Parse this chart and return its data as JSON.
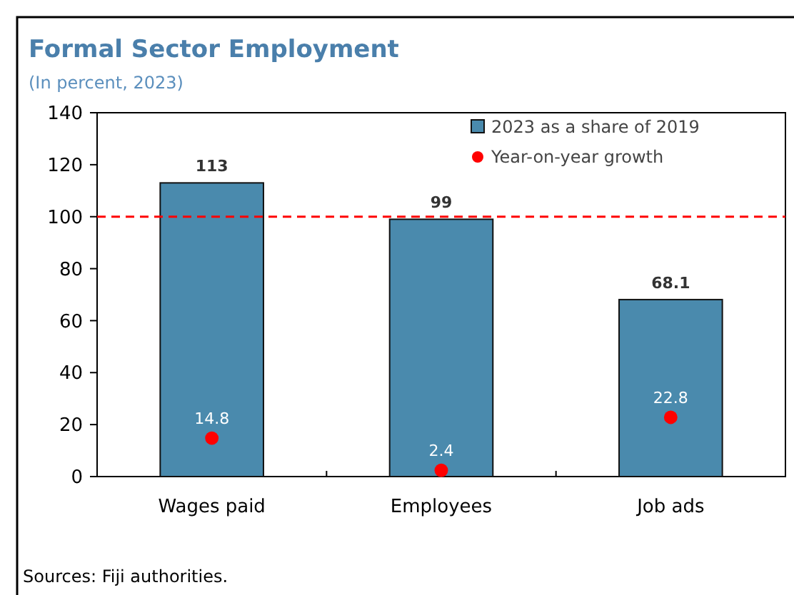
{
  "chart_data": {
    "type": "bar",
    "title": "Formal Sector Employment",
    "subtitle": "(In percent, 2023)",
    "categories": [
      "Wages paid",
      "Employees",
      "Job ads"
    ],
    "series": [
      {
        "name": "2023 as a share of 2019",
        "color": "#4a8aad",
        "values": [
          113,
          99,
          68.1
        ]
      },
      {
        "name": "Year-on-year growth",
        "type": "scatter",
        "color": "#ff0000",
        "x": [
          "Wages paid",
          "Employees",
          "Job ads"
        ],
        "values": [
          14.8,
          2.4,
          22.8
        ]
      }
    ],
    "ylim": [
      0,
      140
    ],
    "yticks": [
      0,
      20,
      40,
      60,
      80,
      100,
      120,
      140
    ],
    "grid": false,
    "legend": "top right",
    "data_labels": true,
    "marker": "circle",
    "ref_lines": [
      {
        "axis": "y",
        "value": 100,
        "label": null,
        "color": "#ff0000",
        "line_style": "dashed"
      }
    ],
    "annotations": [
      "Sources: Fiji authorities."
    ]
  }
}
